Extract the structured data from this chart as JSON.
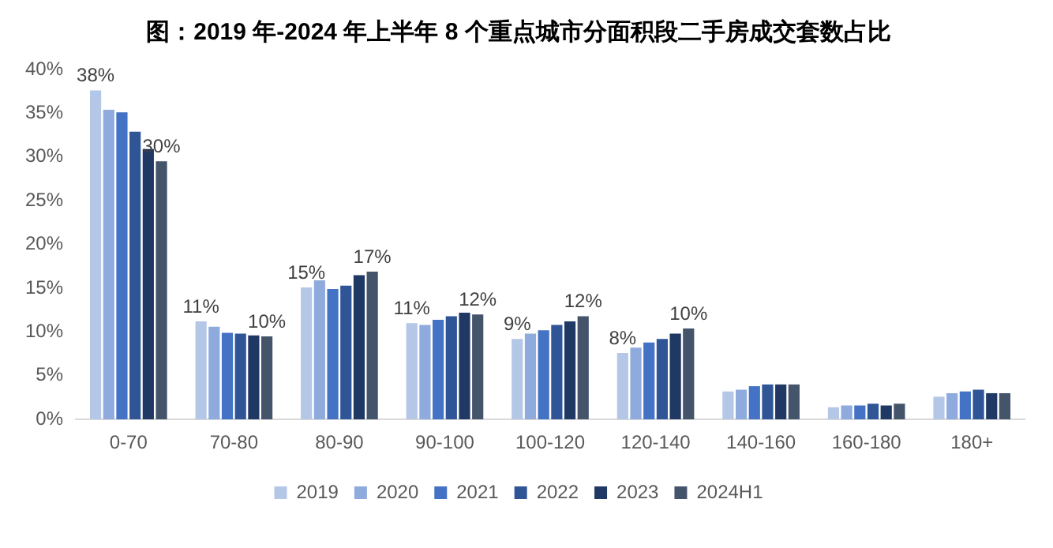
{
  "chart_data": {
    "type": "bar",
    "title": "图：2019 年-2024 年上半年 8 个重点城市分面积段二手房成交套数占比",
    "categories": [
      "0-70",
      "70-80",
      "80-90",
      "90-100",
      "100-120",
      "120-140",
      "140-160",
      "160-180",
      "180+"
    ],
    "series": [
      {
        "name": "2019",
        "color": "#b4c7e7",
        "values": [
          37.6,
          11.2,
          15.1,
          11.0,
          9.2,
          7.6,
          3.2,
          1.4,
          2.6
        ],
        "value_labels": [
          "38%",
          "11%",
          "15%",
          "11%",
          "9%",
          "8%",
          null,
          null,
          null
        ]
      },
      {
        "name": "2020",
        "color": "#8faadc",
        "values": [
          35.4,
          10.6,
          15.9,
          10.8,
          9.8,
          8.2,
          3.4,
          1.6,
          3.0
        ]
      },
      {
        "name": "2021",
        "color": "#4472c4",
        "values": [
          35.1,
          9.9,
          14.9,
          11.4,
          10.2,
          8.8,
          3.8,
          1.6,
          3.2
        ]
      },
      {
        "name": "2022",
        "color": "#2f5597",
        "values": [
          32.9,
          9.8,
          15.3,
          11.8,
          10.8,
          9.2,
          4.0,
          1.8,
          3.4
        ]
      },
      {
        "name": "2023",
        "color": "#203864",
        "values": [
          30.9,
          9.6,
          16.5,
          12.2,
          11.2,
          9.8,
          4.0,
          1.6,
          3.0
        ]
      },
      {
        "name": "2024H1",
        "color": "#44546a",
        "values": [
          29.5,
          9.5,
          16.9,
          12.0,
          11.8,
          10.4,
          4.0,
          1.8,
          3.0
        ],
        "value_labels": [
          "30%",
          "10%",
          "17%",
          "12%",
          "12%",
          "10%",
          null,
          null,
          null
        ]
      }
    ],
    "ylim": [
      0,
      40
    ],
    "yticks": [
      {
        "value": 0,
        "label": "0%"
      },
      {
        "value": 5,
        "label": "5%"
      },
      {
        "value": 10,
        "label": "10%"
      },
      {
        "value": 15,
        "label": "15%"
      },
      {
        "value": 20,
        "label": "20%"
      },
      {
        "value": 25,
        "label": "25%"
      },
      {
        "value": 30,
        "label": "30%"
      },
      {
        "value": 35,
        "label": "35%"
      },
      {
        "value": 40,
        "label": "40%"
      }
    ],
    "grid": false,
    "legend": "bottom"
  }
}
